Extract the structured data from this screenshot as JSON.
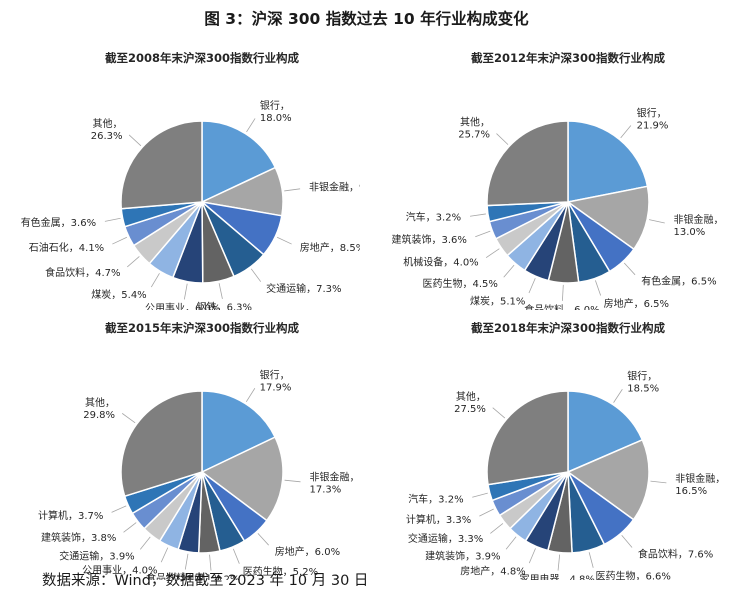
{
  "figure": {
    "title": "图 3：沪深 300 指数过去 10 年行业构成变化",
    "source": "数据来源：Wind，数据截至 2023 年 10 月 30 日"
  },
  "chart_data": [
    {
      "type": "pie",
      "title": "截至2008年末沪深300指数行业构成",
      "slices": [
        {
          "label": "银行",
          "value": 18.0,
          "text": "18.0%",
          "color": "#5b9bd5"
        },
        {
          "label": "非银金融",
          "value": 9.7,
          "text": "9.7%",
          "color": "#a6a6a6"
        },
        {
          "label": "房地产",
          "value": 8.5,
          "text": "8.5%",
          "color": "#4472c4"
        },
        {
          "label": "交通运输",
          "value": 7.3,
          "text": "7.3%",
          "color": "#255e91"
        },
        {
          "label": "钢铁",
          "value": 6.3,
          "text": "6.3%",
          "color": "#636363"
        },
        {
          "label": "公用事业",
          "value": 6.0,
          "text": "6.0%",
          "color": "#264478"
        },
        {
          "label": "煤炭",
          "value": 5.4,
          "text": "5.4%",
          "color": "#8fb4e3"
        },
        {
          "label": "食品饮料",
          "value": 4.7,
          "text": "4.7%",
          "color": "#c9c9c9"
        },
        {
          "label": "石油石化",
          "value": 4.1,
          "text": "4.1%",
          "color": "#698ed0"
        },
        {
          "label": "有色金属",
          "value": 3.6,
          "text": "3.6%",
          "color": "#2e75b6"
        },
        {
          "label": "其他",
          "value": 26.3,
          "text": "26.3%",
          "color": "#7f7f7f"
        }
      ]
    },
    {
      "type": "pie",
      "title": "截至2012年末沪深300指数行业构成",
      "slices": [
        {
          "label": "银行",
          "value": 21.9,
          "text": "21.9%",
          "color": "#5b9bd5"
        },
        {
          "label": "非银金融",
          "value": 13.0,
          "text": "13.0%",
          "color": "#a6a6a6"
        },
        {
          "label": "有色金属",
          "value": 6.5,
          "text": "6.5%",
          "color": "#4472c4"
        },
        {
          "label": "房地产",
          "value": 6.5,
          "text": "6.5%",
          "color": "#255e91"
        },
        {
          "label": "食品饮料",
          "value": 6.0,
          "text": "6.0%",
          "color": "#636363"
        },
        {
          "label": "煤炭",
          "value": 5.1,
          "text": "5.1%",
          "color": "#264478"
        },
        {
          "label": "医药生物",
          "value": 4.5,
          "text": "4.5%",
          "color": "#8fb4e3"
        },
        {
          "label": "机械设备",
          "value": 4.0,
          "text": "4.0%",
          "color": "#c9c9c9"
        },
        {
          "label": "建筑装饰",
          "value": 3.6,
          "text": "3.6%",
          "color": "#698ed0"
        },
        {
          "label": "汽车",
          "value": 3.2,
          "text": "3.2%",
          "color": "#2e75b6"
        },
        {
          "label": "其他",
          "value": 25.7,
          "text": "25.7%",
          "color": "#7f7f7f"
        }
      ]
    },
    {
      "type": "pie",
      "title": "截至2015年末沪深300指数行业构成",
      "slices": [
        {
          "label": "银行",
          "value": 17.9,
          "text": "17.9%",
          "color": "#5b9bd5"
        },
        {
          "label": "非银金融",
          "value": 17.3,
          "text": "17.3%",
          "color": "#a6a6a6"
        },
        {
          "label": "房地产",
          "value": 6.0,
          "text": "6.0%",
          "color": "#4472c4"
        },
        {
          "label": "医药生物",
          "value": 5.2,
          "text": "5.2%",
          "color": "#255e91"
        },
        {
          "label": "传媒",
          "value": 4.2,
          "text": "4.2%",
          "color": "#636363"
        },
        {
          "label": "食品饮料",
          "value": 4.1,
          "text": "4.1%",
          "color": "#264478"
        },
        {
          "label": "公用事业",
          "value": 4.0,
          "text": "4.0%",
          "color": "#8fb4e3"
        },
        {
          "label": "交通运输",
          "value": 3.9,
          "text": "3.9%",
          "color": "#c9c9c9"
        },
        {
          "label": "建筑装饰",
          "value": 3.8,
          "text": "3.8%",
          "color": "#698ed0"
        },
        {
          "label": "计算机",
          "value": 3.7,
          "text": "3.7%",
          "color": "#2e75b6"
        },
        {
          "label": "其他",
          "value": 29.8,
          "text": "29.8%",
          "color": "#7f7f7f"
        }
      ]
    },
    {
      "type": "pie",
      "title": "截至2018年末沪深300指数行业构成",
      "slices": [
        {
          "label": "银行",
          "value": 18.5,
          "text": "18.5%",
          "color": "#5b9bd5"
        },
        {
          "label": "非银金融",
          "value": 16.5,
          "text": "16.5%",
          "color": "#a6a6a6"
        },
        {
          "label": "食品饮料",
          "value": 7.6,
          "text": "7.6%",
          "color": "#4472c4"
        },
        {
          "label": "医药生物",
          "value": 6.6,
          "text": "6.6%",
          "color": "#255e91"
        },
        {
          "label": "家用电器",
          "value": 4.8,
          "text": "4.8%",
          "color": "#636363"
        },
        {
          "label": "房地产",
          "value": 4.8,
          "text": "4.8%",
          "color": "#264478"
        },
        {
          "label": "建筑装饰",
          "value": 3.9,
          "text": "3.9%",
          "color": "#8fb4e3"
        },
        {
          "label": "交通运输",
          "value": 3.3,
          "text": "3.3%",
          "color": "#c9c9c9"
        },
        {
          "label": "计算机",
          "value": 3.3,
          "text": "3.3%",
          "color": "#698ed0"
        },
        {
          "label": "汽车",
          "value": 3.2,
          "text": "3.2%",
          "color": "#2e75b6"
        },
        {
          "label": "其他",
          "value": 27.5,
          "text": "27.5%",
          "color": "#7f7f7f"
        }
      ]
    }
  ]
}
